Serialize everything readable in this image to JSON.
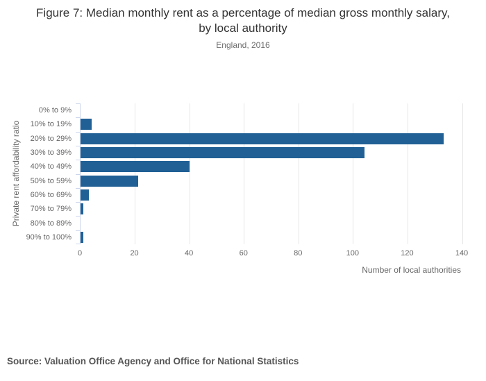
{
  "header": {
    "title": "Figure 7: Median monthly rent as a percentage of median gross monthly salary, by local authority",
    "subtitle": "England, 2016"
  },
  "chart_data": {
    "type": "bar",
    "orientation": "horizontal",
    "title": "Figure 7: Median monthly rent as a percentage of median gross monthly salary, by local authority",
    "subtitle": "England, 2016",
    "categories": [
      "0% to 9%",
      "10% to 19%",
      "20% to 29%",
      "30% to 39%",
      "40% to 49%",
      "50% to 59%",
      "60% to 69%",
      "70% to 79%",
      "80% to 89%",
      "90% to 100%"
    ],
    "values": [
      0,
      4,
      133,
      104,
      40,
      21,
      3,
      1,
      0,
      1
    ],
    "xlabel": "Number of local authorities",
    "ylabel": "Private rent affordability ratio",
    "xlim": [
      0,
      140
    ],
    "xticks": [
      0,
      20,
      40,
      60,
      80,
      100,
      120,
      140
    ],
    "grid": true,
    "legend": "none",
    "bar_color": "#206095"
  },
  "footer": {
    "source": "Source: Valuation Office Agency and Office for National Statistics"
  },
  "colors": {
    "bar": "#206095",
    "gridline": "#e6e6e6",
    "axis_line": "#ccd6eb",
    "title_text": "#333333",
    "subtitle_text": "#6e6e6e",
    "axis_text": "#666666",
    "source_text": "#555555",
    "background": "#ffffff"
  }
}
